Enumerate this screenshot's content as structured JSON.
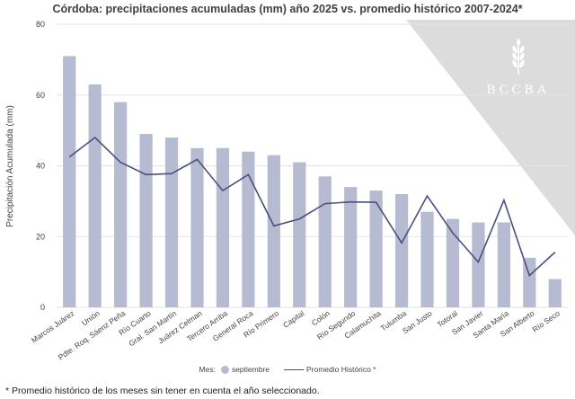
{
  "chart_data": {
    "type": "bar",
    "title": "Córdoba: precipitaciones acumuladas (mm) año 2025 vs. promedio histórico 2007-2024*",
    "ylabel": "Precipitación Acumulada (mm)",
    "xlabel": "",
    "ylim": [
      0,
      80
    ],
    "yticks": [
      0,
      20,
      40,
      60,
      80
    ],
    "grid": true,
    "legend_position": "bottom",
    "categories": [
      "Marcos Juárez",
      "Unión",
      "Pdte. Roq. Sáenz Peña",
      "Río Cuarto",
      "Gral. San Martín",
      "Juárez Celman",
      "Tercero Arriba",
      "General Roca",
      "Río Primero",
      "Capital",
      "Colón",
      "Río Segundo",
      "Calamuchita",
      "Tulumba",
      "San Justo",
      "Totoral",
      "San Javier",
      "Santa María",
      "San Alberto",
      "Río Seco"
    ],
    "series": [
      {
        "name": "septiembre",
        "type": "bar",
        "color": "#b7bbd2",
        "values": [
          71,
          63,
          58,
          49,
          48,
          45,
          45,
          44,
          43,
          41,
          37,
          34,
          33,
          32,
          27,
          25,
          24,
          24,
          14,
          8
        ]
      },
      {
        "name": "Promedio Histórico *",
        "type": "line",
        "color": "#4a4f80",
        "values": [
          42.5,
          48,
          41,
          37.5,
          37.8,
          41.8,
          33,
          37.5,
          23,
          25,
          29.3,
          29.8,
          29.7,
          18.2,
          31.5,
          21,
          12.8,
          30.3,
          9,
          15.6
        ]
      }
    ]
  },
  "legend": {
    "prefix": "Mes:",
    "bar_label": "septiembre",
    "line_label": "Promedio Histórico *"
  },
  "footnote": "* Promedio histórico de los meses sin tener en cuenta el año seleccionado.",
  "watermark": {
    "text": "BCCBA",
    "icon": "wheat-icon"
  }
}
